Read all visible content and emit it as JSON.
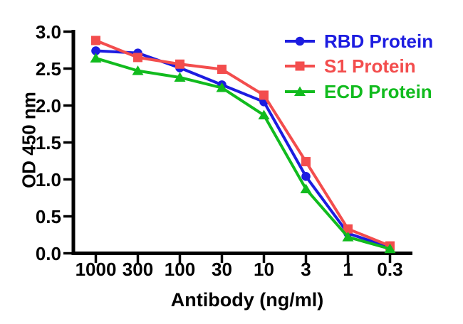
{
  "chart_data": {
    "type": "line",
    "title": "",
    "xlabel": "Antibody (ng/ml)",
    "ylabel": "OD 450 nm",
    "x_scale": "log-descending",
    "categories": [
      "1000",
      "300",
      "100",
      "30",
      "10",
      "3",
      "1",
      "0.3"
    ],
    "y_ticks": [
      0.0,
      0.5,
      1.0,
      1.5,
      2.0,
      2.5,
      3.0
    ],
    "y_tick_labels": [
      "0.0",
      "0.5",
      "1.0",
      "1.5",
      "2.0",
      "2.5",
      "3.0"
    ],
    "ylim": [
      0,
      3.0
    ],
    "grid": false,
    "legend_position": "top-right",
    "axis_color": "#000000",
    "background_color": "#ffffff",
    "series": [
      {
        "name": "RBD Protein",
        "color": "#1C1CE0",
        "marker": "circle",
        "values": [
          2.74,
          2.71,
          2.51,
          2.28,
          2.05,
          1.04,
          0.27,
          0.08
        ]
      },
      {
        "name": "S1 Protein",
        "color": "#F34D4D",
        "marker": "square",
        "values": [
          2.88,
          2.65,
          2.56,
          2.49,
          2.14,
          1.24,
          0.33,
          0.1
        ]
      },
      {
        "name": "ECD Protein",
        "color": "#11BB1E",
        "marker": "triangle",
        "values": [
          2.64,
          2.47,
          2.38,
          2.24,
          1.87,
          0.87,
          0.22,
          0.06
        ]
      }
    ]
  }
}
